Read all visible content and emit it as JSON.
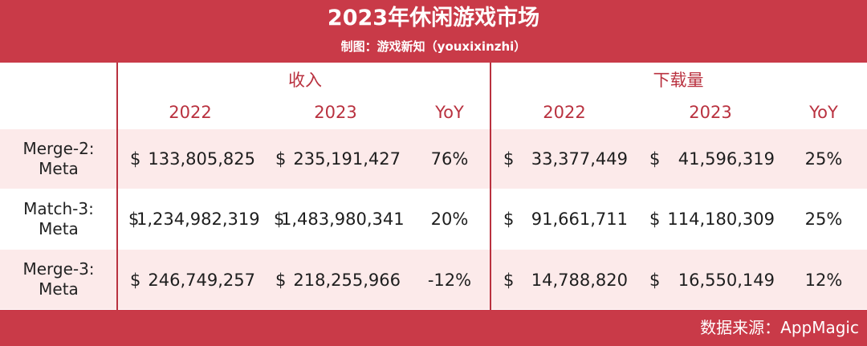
{
  "header": {
    "title": "2023年休闲游戏市场",
    "subtitle": "制图：游戏新知（youxixinzhi）"
  },
  "groups": {
    "revenue": "收入",
    "downloads": "下载量"
  },
  "columns": {
    "revenue": [
      "2022",
      "2023",
      "YoY"
    ],
    "downloads": [
      "2022",
      "2023",
      "YoY"
    ]
  },
  "rows": [
    {
      "label_line1": "Merge-2:",
      "label_line2": "Meta",
      "rev_cur_2022": "$",
      "rev_2022": "133,805,825",
      "rev_cur_2023": "$",
      "rev_2023": "235,191,427",
      "rev_yoy": "76%",
      "dl_cur_2022": "$",
      "dl_2022": "33,377,449",
      "dl_cur_2023": "$",
      "dl_2023": "41,596,319",
      "dl_yoy": "25%"
    },
    {
      "label_line1": "Match-3:",
      "label_line2": "Meta",
      "rev_cur_2022": "$",
      "rev_2022": "1,234,982,319",
      "rev_cur_2023": "$",
      "rev_2023": "1,483,980,341",
      "rev_yoy": "20%",
      "dl_cur_2022": "$",
      "dl_2022": "91,661,711",
      "dl_cur_2023": "$",
      "dl_2023": "114,180,309",
      "dl_yoy": "25%"
    },
    {
      "label_line1": "Merge-3:",
      "label_line2": "Meta",
      "rev_cur_2022": "$",
      "rev_2022": "246,749,257",
      "rev_cur_2023": "$",
      "rev_2023": "218,255,966",
      "rev_yoy": "-12%",
      "dl_cur_2022": "$",
      "dl_2022": "14,788,820",
      "dl_cur_2023": "$",
      "dl_2023": "16,550,149",
      "dl_yoy": "12%"
    }
  ],
  "footer": {
    "source": "数据来源：AppMagic"
  },
  "colors": {
    "brand_red": "#c93a48",
    "row_band": "#fceaea",
    "header_text": "#b9313f"
  }
}
